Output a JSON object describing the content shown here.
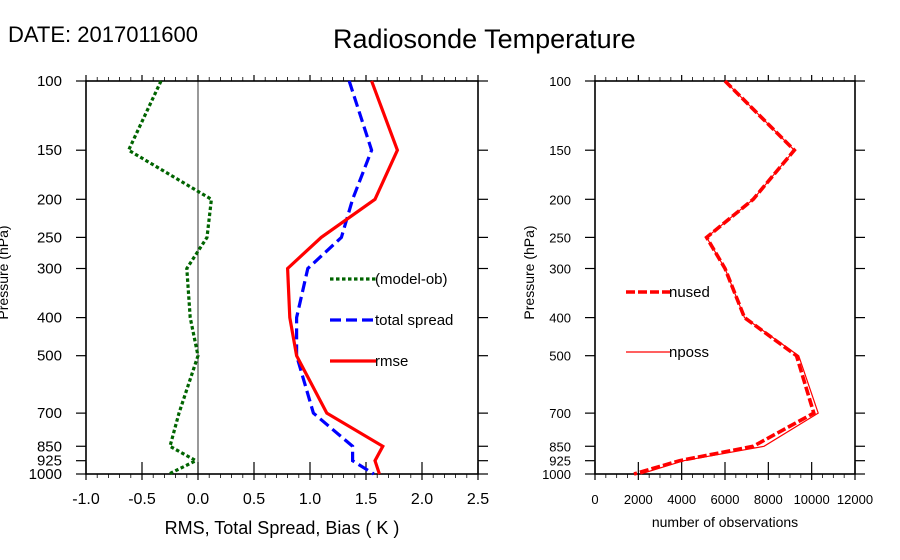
{
  "header": {
    "date_label": "DATE: 2017011600",
    "title": "Radiosonde Temperature"
  },
  "chart_data": [
    {
      "type": "line",
      "title": "Radiosonde Temperature",
      "xlabel": "RMS, Total Spread, Bias ( K )",
      "ylabel": "Pressure (hPa)",
      "xlim": [
        -1.0,
        2.5
      ],
      "ylim": [
        1000,
        100
      ],
      "yscale": "log",
      "y_reversed": true,
      "xticks": [
        "-1.0",
        "-0.5",
        "0.0",
        "0.5",
        "1.0",
        "1.5",
        "2.0",
        "2.5"
      ],
      "xtick_values": [
        -1.0,
        -0.5,
        0.0,
        0.5,
        1.0,
        1.5,
        2.0,
        2.5
      ],
      "yticks": [
        "100",
        "150",
        "200",
        "250",
        "300",
        "400",
        "500",
        "700",
        "850",
        "925",
        "1000"
      ],
      "ytick_values": [
        100,
        150,
        200,
        250,
        300,
        400,
        500,
        700,
        850,
        925,
        1000
      ],
      "zero_line": 0.0,
      "grid": false,
      "legend_placement": "center-right",
      "pressure": [
        100,
        150,
        200,
        250,
        300,
        400,
        500,
        700,
        850,
        925,
        1000
      ],
      "series": [
        {
          "name": "(model-ob)",
          "color": "#006400",
          "style": "dotted",
          "values": [
            -0.33,
            -0.62,
            0.12,
            0.08,
            -0.1,
            -0.07,
            0.0,
            -0.17,
            -0.25,
            -0.02,
            -0.26
          ]
        },
        {
          "name": "total spread",
          "color": "#0000ff",
          "style": "dashed",
          "values": [
            1.35,
            1.55,
            1.38,
            1.28,
            0.98,
            0.88,
            0.88,
            1.03,
            1.38,
            1.38,
            1.57
          ]
        },
        {
          "name": "rmse",
          "color": "#ff0000",
          "style": "solid",
          "values": [
            1.55,
            1.78,
            1.58,
            1.1,
            0.8,
            0.82,
            0.88,
            1.15,
            1.65,
            1.58,
            1.62
          ]
        }
      ]
    },
    {
      "type": "line",
      "title": "",
      "xlabel": "number of observations",
      "ylabel": "Pressure (hPa)",
      "xlim": [
        0,
        12000
      ],
      "ylim": [
        1000,
        100
      ],
      "yscale": "log",
      "y_reversed": true,
      "xticks": [
        "0",
        "2000",
        "4000",
        "6000",
        "8000",
        "10000",
        "12000"
      ],
      "xtick_values": [
        0,
        2000,
        4000,
        6000,
        8000,
        10000,
        12000
      ],
      "yticks": [
        "100",
        "150",
        "200",
        "250",
        "300",
        "400",
        "500",
        "700",
        "850",
        "925",
        "1000"
      ],
      "ytick_values": [
        100,
        150,
        200,
        250,
        300,
        400,
        500,
        700,
        850,
        925,
        1000
      ],
      "grid": false,
      "legend_placement": "center-left",
      "pressure": [
        100,
        150,
        200,
        250,
        300,
        400,
        500,
        700,
        850,
        925,
        1000
      ],
      "series": [
        {
          "name": "nused",
          "color": "#ff0000",
          "style": "dashed-thick",
          "values": [
            6000,
            9200,
            7300,
            5150,
            6000,
            6900,
            9300,
            10100,
            7300,
            3900,
            1800
          ]
        },
        {
          "name": "nposs",
          "color": "#ff0000",
          "style": "thin",
          "values": [
            6000,
            9200,
            7300,
            5150,
            6000,
            6900,
            9400,
            10300,
            7800,
            4100,
            2100
          ]
        }
      ]
    }
  ]
}
